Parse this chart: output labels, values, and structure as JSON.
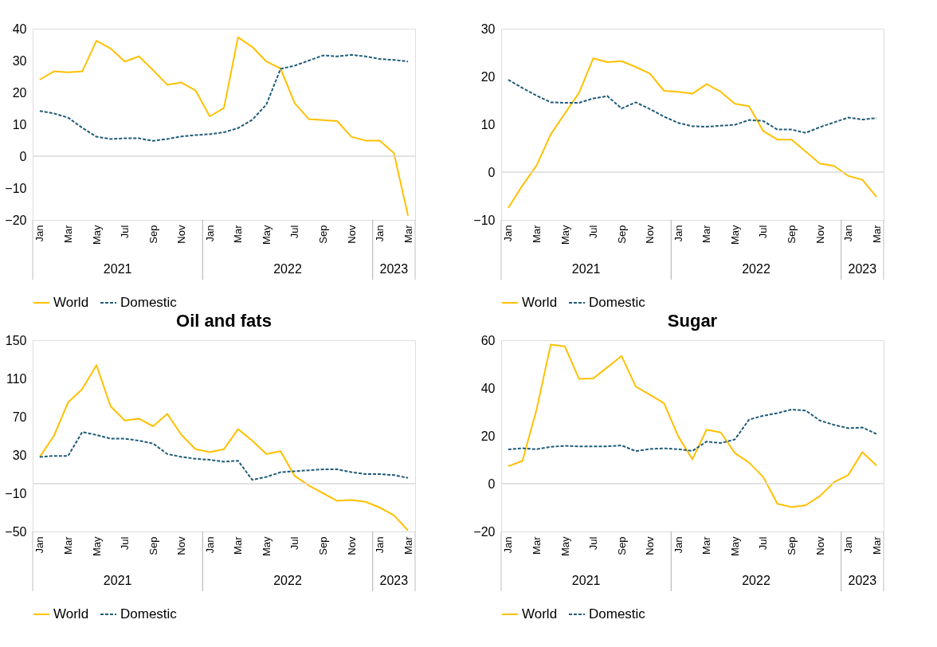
{
  "chart_data": [
    {
      "type": "line",
      "categories": [
        "Jan",
        null,
        "Mar",
        null,
        "May",
        null,
        "Jul",
        null,
        "Sep",
        null,
        "Nov",
        null,
        "Jan",
        null,
        "Mar",
        null,
        "May",
        null,
        "Jul",
        null,
        "Sep",
        null,
        "Nov",
        null,
        "Jan",
        null,
        "Mar"
      ],
      "ylim": [
        -20,
        40
      ],
      "yticks": [
        -20,
        -10,
        0,
        10,
        20,
        30,
        40
      ],
      "grid": false,
      "legend": "bottom",
      "marker": "none",
      "annotations": [
        "2021",
        "2022",
        "2023"
      ],
      "ref_lines": [
        {
          "axis": "y",
          "value": 0,
          "color": "#d9d9d9"
        }
      ],
      "series": [
        {
          "name": "World",
          "color": "#ffc000",
          "line_style": "solid",
          "values": [
            24,
            26.6,
            26.3,
            26.6,
            36.2,
            33.8,
            29.7,
            31.3,
            27,
            22.4,
            23.1,
            20.6,
            12.5,
            15.1,
            37.3,
            34.3,
            29.7,
            27.5,
            16.6,
            11.6,
            11.3,
            11,
            6.1,
            4.9,
            4.9,
            1,
            -18.7
          ]
        },
        {
          "name": "Domestic",
          "color": "#1f5c78",
          "line_style": "dashed",
          "values": [
            14.2,
            13.4,
            12.1,
            8.9,
            6.1,
            5.4,
            5.6,
            5.6,
            4.8,
            5.4,
            6.2,
            6.6,
            6.9,
            7.5,
            8.8,
            11.4,
            16.2,
            27.4,
            28.4,
            30,
            31.6,
            31.3,
            31.8,
            31.3,
            30.5,
            30.2,
            29.7
          ]
        }
      ]
    },
    {
      "type": "line",
      "categories": [
        "Jan",
        null,
        "Mar",
        null,
        "May",
        null,
        "Jul",
        null,
        "Sep",
        null,
        "Nov",
        null,
        "Jan",
        null,
        "Mar",
        null,
        "May",
        null,
        "Jul",
        null,
        "Sep",
        null,
        "Nov",
        null,
        "Jan",
        null,
        "Mar"
      ],
      "ylim": [
        -10,
        30
      ],
      "yticks": [
        -10,
        0,
        10,
        20,
        30
      ],
      "grid": false,
      "legend": "bottom",
      "marker": "none",
      "annotations": [
        "2021",
        "2022",
        "2023"
      ],
      "ref_lines": [
        {
          "axis": "y",
          "value": 0,
          "color": "#d9d9d9"
        }
      ],
      "series": [
        {
          "name": "World",
          "color": "#ffc000",
          "line_style": "solid",
          "values": [
            -7.5,
            -2.8,
            1.4,
            7.9,
            12.3,
            16.6,
            23.8,
            23,
            23.2,
            22,
            20.6,
            17,
            16.8,
            16.4,
            18.4,
            16.8,
            14.3,
            13.8,
            8.6,
            6.8,
            6.8,
            4.3,
            1.8,
            1.3,
            -0.8,
            -1.6,
            -5.2
          ]
        },
        {
          "name": "Domestic",
          "color": "#1f5c78",
          "line_style": "dashed",
          "values": [
            19.3,
            17.6,
            16,
            14.6,
            14.5,
            14.5,
            15.4,
            15.9,
            13.3,
            14.6,
            13.2,
            11.6,
            10.3,
            9.6,
            9.5,
            9.7,
            9.9,
            10.9,
            10.7,
            8.9,
            8.9,
            8.2,
            9.4,
            10.4,
            11.4,
            11,
            11.3
          ]
        }
      ]
    },
    {
      "type": "line",
      "title": "Oil and fats",
      "categories": [
        "Jan",
        null,
        "Mar",
        null,
        "May",
        null,
        "Jul",
        null,
        "Sep",
        null,
        "Nov",
        null,
        "Jan",
        null,
        "Mar",
        null,
        "May",
        null,
        "Jul",
        null,
        "Sep",
        null,
        "Nov",
        null,
        "Jan",
        null,
        "Mar"
      ],
      "ylim": [
        -50,
        150
      ],
      "yticks": [
        -50,
        -10,
        30,
        70,
        110,
        150
      ],
      "grid": false,
      "legend": "bottom",
      "marker": "none",
      "annotations": [
        "2021",
        "2022",
        "2023"
      ],
      "ref_lines": [
        {
          "axis": "y",
          "value": 0,
          "color": "#d9d9d9"
        }
      ],
      "series": [
        {
          "name": "World",
          "color": "#ffc000",
          "line_style": "solid",
          "values": [
            28,
            50,
            85,
            99,
            124,
            81,
            66,
            68,
            60,
            73,
            51,
            36,
            33,
            36,
            57,
            45,
            31,
            34,
            8,
            -2,
            -10,
            -18,
            -17,
            -19,
            -25,
            -33,
            -49
          ]
        },
        {
          "name": "Domestic",
          "color": "#1f5c78",
          "line_style": "dashed",
          "values": [
            28,
            29,
            29,
            54,
            51,
            47,
            47,
            45,
            42,
            31,
            28,
            26,
            25,
            23,
            24,
            4,
            7,
            12,
            13,
            14,
            15,
            15,
            12,
            10,
            10,
            9,
            6
          ]
        }
      ]
    },
    {
      "type": "line",
      "title": "Sugar",
      "categories": [
        "Jan",
        null,
        "Mar",
        null,
        "May",
        null,
        "Jul",
        null,
        "Sep",
        null,
        "Nov",
        null,
        "Jan",
        null,
        "Mar",
        null,
        "May",
        null,
        "Jul",
        null,
        "Sep",
        null,
        "Nov",
        null,
        "Jan",
        null,
        "Mar"
      ],
      "ylim": [
        -20,
        60
      ],
      "yticks": [
        -20,
        0,
        20,
        40,
        60
      ],
      "grid": false,
      "legend": "bottom",
      "marker": "none",
      "annotations": [
        "2021",
        "2022",
        "2023"
      ],
      "ref_lines": [
        {
          "axis": "y",
          "value": 0,
          "color": "#d9d9d9"
        }
      ],
      "series": [
        {
          "name": "World",
          "color": "#ffc000",
          "line_style": "solid",
          "values": [
            7.3,
            9.5,
            31,
            58.2,
            57.4,
            43.8,
            44,
            48.7,
            53.4,
            40.6,
            37.2,
            33.6,
            19.8,
            10.2,
            22.6,
            21.4,
            12.8,
            8.8,
            2.8,
            -8.4,
            -9.8,
            -9,
            -5.2,
            0.6,
            3.6,
            13.2,
            7.6
          ]
        },
        {
          "name": "Domestic",
          "color": "#1f5c78",
          "line_style": "dashed",
          "values": [
            14.3,
            14.8,
            14.4,
            15.4,
            15.8,
            15.6,
            15.6,
            15.6,
            16,
            13.6,
            14.5,
            14.8,
            14.4,
            13.7,
            17.6,
            17,
            18.5,
            26.8,
            28.4,
            29.5,
            31,
            30.6,
            26.4,
            24.6,
            23.2,
            23.5,
            20.8
          ]
        }
      ]
    }
  ]
}
